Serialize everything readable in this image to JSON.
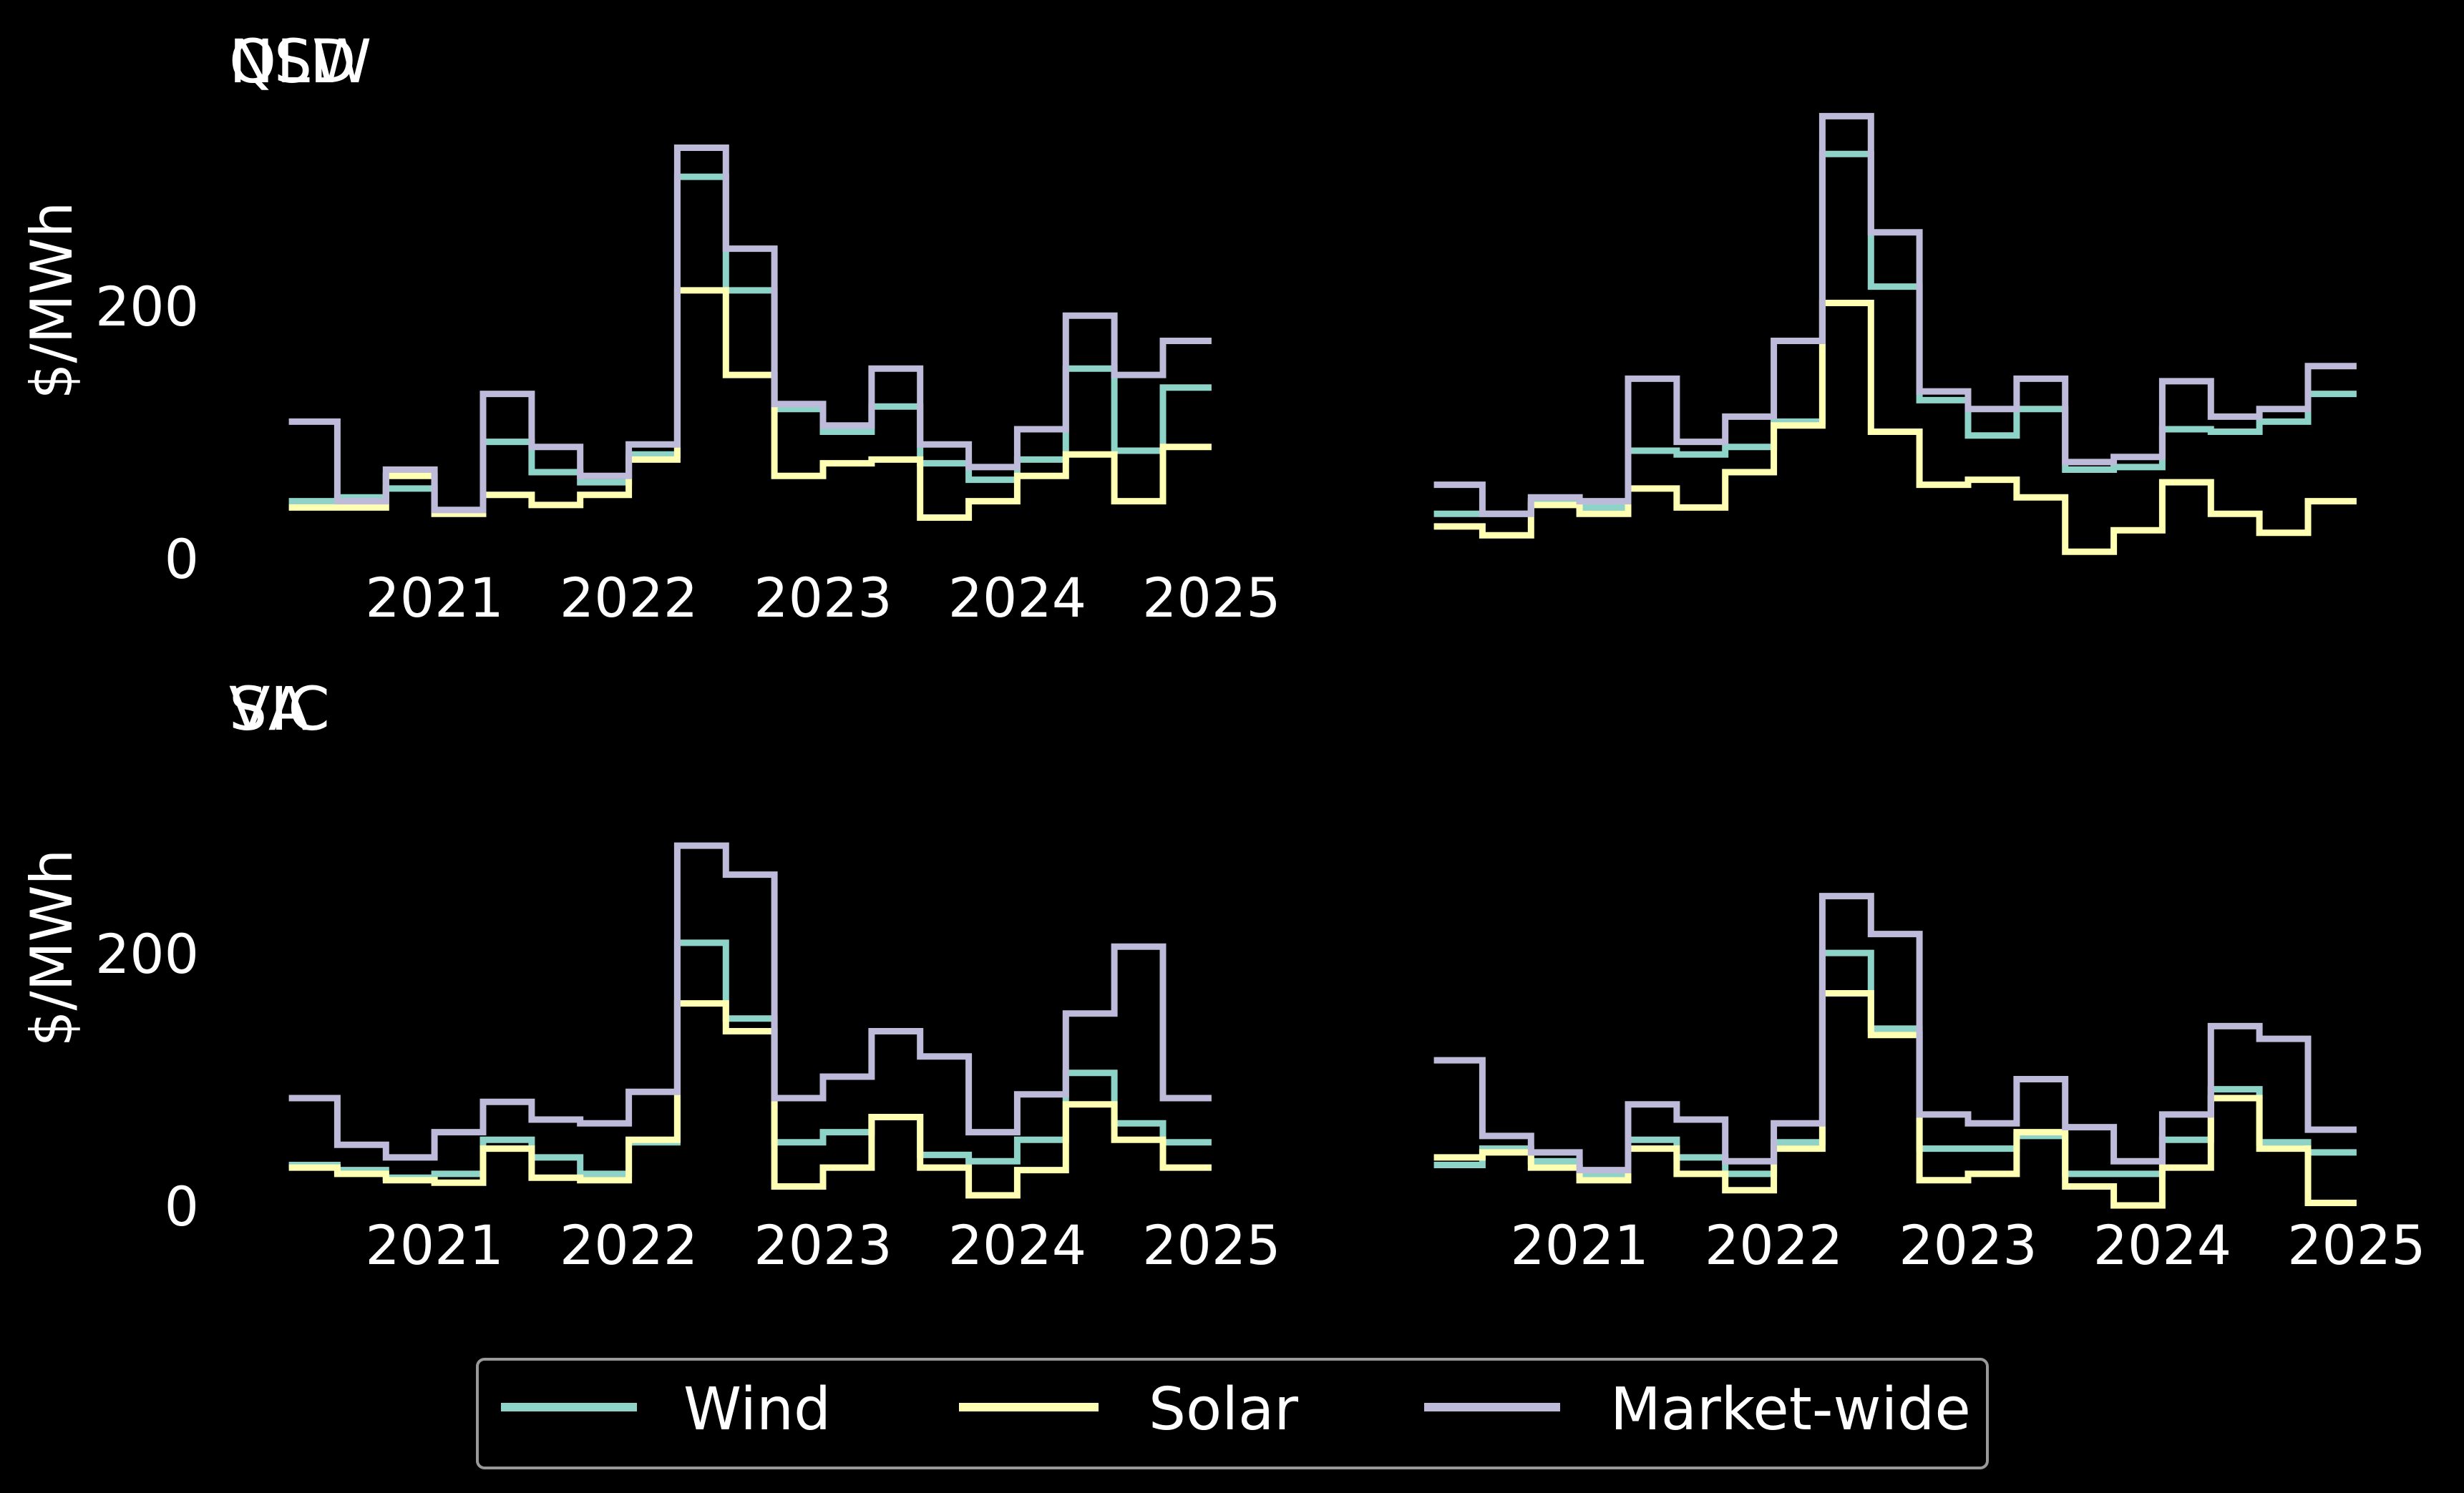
{
  "colors": {
    "background": "#000000",
    "text": "#ffffff",
    "wind": "#8dd3c7",
    "solar": "#ffffb3",
    "market": "#bebada",
    "legend_border": "#999999"
  },
  "legend": {
    "position": "bottom-center",
    "items": [
      {
        "label": "Wind",
        "color": "#8dd3c7"
      },
      {
        "label": "Solar",
        "color": "#ffffb3"
      },
      {
        "label": "Market-wide",
        "color": "#bebada"
      }
    ]
  },
  "chart_data": [
    {
      "type": "line",
      "step": true,
      "title": "NSW",
      "ylabel": "$/MWh",
      "xlabel": "",
      "ylim": [
        0,
        340
      ],
      "xlim": [
        2020.2,
        2025.1
      ],
      "grid": false,
      "yticks": [
        "0",
        "200"
      ],
      "xticks": [
        "2021",
        "2022",
        "2023",
        "2024",
        "2025"
      ],
      "x": [
        2020.25,
        2020.5,
        2020.75,
        2021.0,
        2021.25,
        2021.5,
        2021.75,
        2022.0,
        2022.25,
        2022.5,
        2022.75,
        2023.0,
        2023.25,
        2023.5,
        2023.75,
        2024.0,
        2024.25,
        2024.5,
        2024.75,
        2025.0
      ],
      "series": [
        {
          "name": "Wind",
          "values": [
            45,
            48,
            55,
            38,
            92,
            68,
            60,
            82,
            302,
            212,
            118,
            100,
            120,
            75,
            62,
            78,
            150,
            85,
            135,
            135
          ]
        },
        {
          "name": "Solar",
          "values": [
            40,
            40,
            65,
            35,
            50,
            42,
            50,
            78,
            212,
            145,
            65,
            75,
            78,
            32,
            45,
            65,
            82,
            45,
            88,
            88
          ]
        },
        {
          "name": "Market-wide",
          "values": [
            108,
            45,
            70,
            38,
            130,
            88,
            65,
            90,
            325,
            245,
            122,
            105,
            150,
            90,
            72,
            102,
            192,
            145,
            172,
            172
          ]
        }
      ]
    },
    {
      "type": "line",
      "step": true,
      "title": "QLD",
      "ylabel": "",
      "xlabel": "",
      "ylim": [
        0,
        340
      ],
      "xlim": [
        2020.2,
        2025.1
      ],
      "grid": false,
      "yticks": [],
      "xticks": [],
      "x": [
        2020.25,
        2020.5,
        2020.75,
        2021.0,
        2021.25,
        2021.5,
        2021.75,
        2022.0,
        2022.25,
        2022.5,
        2022.75,
        2023.0,
        2023.25,
        2023.5,
        2023.75,
        2024.0,
        2024.25,
        2024.5,
        2024.75,
        2025.0
      ],
      "series": [
        {
          "name": "Wind",
          "values": [
            35,
            35,
            45,
            40,
            85,
            82,
            88,
            108,
            320,
            215,
            125,
            97,
            118,
            70,
            72,
            102,
            100,
            108,
            130,
            130
          ]
        },
        {
          "name": "Solar",
          "values": [
            25,
            18,
            42,
            35,
            55,
            40,
            68,
            105,
            202,
            100,
            58,
            62,
            48,
            5,
            22,
            60,
            35,
            20,
            45,
            45
          ]
        },
        {
          "name": "Market-wide",
          "values": [
            58,
            35,
            48,
            45,
            142,
            92,
            112,
            172,
            350,
            258,
            132,
            118,
            142,
            76,
            80,
            140,
            112,
            118,
            152,
            152
          ]
        }
      ]
    },
    {
      "type": "line",
      "step": true,
      "title": "SA",
      "ylabel": "$/MWh",
      "xlabel": "",
      "ylim": [
        0,
        340
      ],
      "xlim": [
        2020.2,
        2025.1
      ],
      "grid": false,
      "yticks": [
        "0",
        "200"
      ],
      "xticks": [
        "2021",
        "2022",
        "2023",
        "2024",
        "2025"
      ],
      "x": [
        2020.25,
        2020.5,
        2020.75,
        2021.0,
        2021.25,
        2021.5,
        2021.75,
        2022.0,
        2022.25,
        2022.5,
        2022.75,
        2023.0,
        2023.25,
        2023.5,
        2023.75,
        2024.0,
        2024.25,
        2024.5,
        2024.75,
        2025.0
      ],
      "series": [
        {
          "name": "Wind",
          "values": [
            32,
            28,
            22,
            25,
            52,
            38,
            25,
            50,
            208,
            148,
            50,
            58,
            70,
            40,
            35,
            52,
            105,
            65,
            50,
            50
          ]
        },
        {
          "name": "Solar",
          "values": [
            30,
            25,
            20,
            18,
            45,
            22,
            20,
            52,
            160,
            138,
            15,
            30,
            70,
            30,
            8,
            28,
            80,
            52,
            30,
            30
          ]
        },
        {
          "name": "Market-wide",
          "values": [
            85,
            48,
            38,
            58,
            82,
            68,
            65,
            90,
            285,
            262,
            85,
            102,
            138,
            118,
            58,
            88,
            152,
            205,
            85,
            85
          ]
        }
      ]
    },
    {
      "type": "line",
      "step": true,
      "title": "VIC",
      "ylabel": "",
      "xlabel": "",
      "ylim": [
        0,
        340
      ],
      "xlim": [
        2020.2,
        2025.1
      ],
      "grid": false,
      "yticks": [],
      "xticks": [
        "2021",
        "2022",
        "2023",
        "2024",
        "2025"
      ],
      "x": [
        2020.25,
        2020.5,
        2020.75,
        2021.0,
        2021.25,
        2021.5,
        2021.75,
        2022.0,
        2022.25,
        2022.5,
        2022.75,
        2023.0,
        2023.25,
        2023.5,
        2023.75,
        2024.0,
        2024.25,
        2024.5,
        2024.75,
        2025.0
      ],
      "series": [
        {
          "name": "Wind",
          "values": [
            32,
            45,
            35,
            25,
            52,
            38,
            25,
            50,
            200,
            140,
            45,
            45,
            55,
            25,
            25,
            52,
            92,
            50,
            42,
            42
          ]
        },
        {
          "name": "Solar",
          "values": [
            38,
            42,
            30,
            20,
            45,
            25,
            12,
            45,
            168,
            135,
            20,
            25,
            58,
            15,
            0,
            30,
            85,
            45,
            2,
            2
          ]
        },
        {
          "name": "Market-wide",
          "values": [
            115,
            55,
            42,
            28,
            80,
            68,
            35,
            65,
            245,
            215,
            72,
            65,
            100,
            62,
            35,
            72,
            142,
            132,
            60,
            60
          ]
        }
      ]
    }
  ]
}
